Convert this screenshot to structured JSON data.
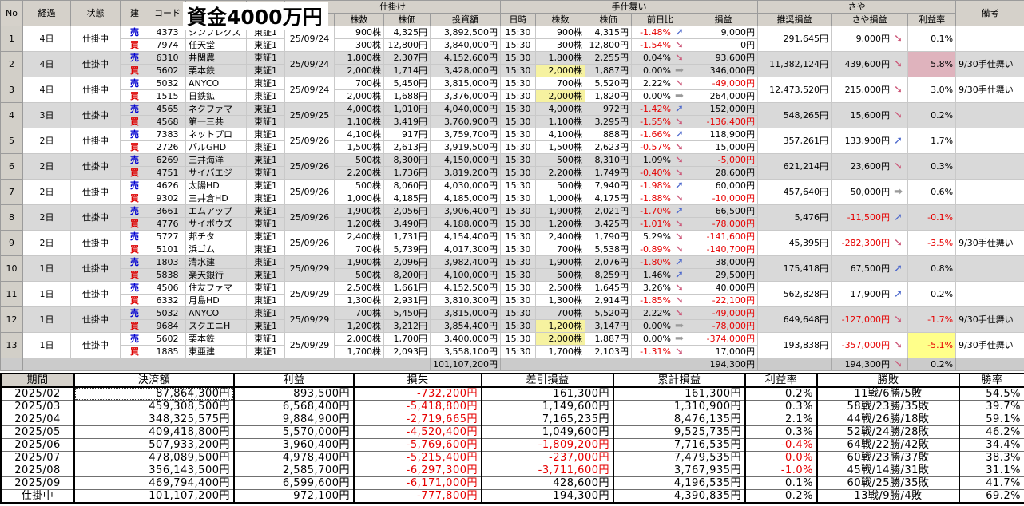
{
  "overlay": {
    "label": "資金4000万円"
  },
  "colors": {
    "sell_blue": "#0000d0",
    "buy_red": "#dd0000",
    "negative_red": "#e60000",
    "qty_highlight_yellow": "#f6f2a0",
    "rate_highlight_pink": "#dfb3bd",
    "rate_highlight_yellow": "#ffff8a",
    "arrow_up_blue": "#4a66cc",
    "arrow_down_pink": "#cc5577",
    "arrow_flat_gray": "#9a9a9a",
    "header_gray": "#d5d1ca",
    "alt_row_gray": "#d9d9d9"
  },
  "top_table": {
    "headers": {
      "no": "No",
      "elapsed": "経過",
      "status": "状態",
      "side": "建",
      "code": "コード",
      "name": "",
      "market": "",
      "entry_group": "仕掛け",
      "entry_date": "",
      "entry_qty": "株数",
      "entry_price": "株価",
      "entry_amount": "投資額",
      "close_group": "手仕舞い",
      "close_time": "日時",
      "close_qty": "株数",
      "close_price": "株価",
      "change": "前日比",
      "pl": "損益",
      "saya_group": "さや",
      "rec_pl": "推奨損益",
      "saya_pl": "さや損益",
      "rate": "利益率",
      "remark": "備考"
    },
    "rows": [
      {
        "no": "1",
        "elapsed": "4日",
        "status": "仕掛中",
        "date": "25/09/24",
        "sell": {
          "side": "売",
          "code": "4373",
          "name": "シンプレクス",
          "market": "東証1",
          "qty": "900株",
          "price": "4,325円",
          "amount": "3,892,500円",
          "time": "15:30",
          "c_qty": "900株",
          "c_qty_hl": false,
          "c_price": "4,315円",
          "change": "-1.48%",
          "change_arrow": "up",
          "pl": "9,000円"
        },
        "buy": {
          "side": "買",
          "code": "7974",
          "name": "任天堂",
          "market": "東証1",
          "qty": "300株",
          "price": "12,800円",
          "amount": "3,840,000円",
          "time": "15:30",
          "c_qty": "300株",
          "c_qty_hl": false,
          "c_price": "12,800円",
          "change": "-1.54%",
          "change_arrow": "down",
          "pl": "0円"
        },
        "rec_pl": "291,645円",
        "saya_pl": "9,000円",
        "saya_arrow": "down",
        "rate": "0.1%",
        "rate_hl": "",
        "remark": ""
      },
      {
        "no": "2",
        "elapsed": "4日",
        "status": "仕掛中",
        "date": "25/09/24",
        "sell": {
          "side": "売",
          "code": "6310",
          "name": "井関農",
          "market": "東証1",
          "qty": "1,800株",
          "price": "2,307円",
          "amount": "4,152,600円",
          "time": "15:30",
          "c_qty": "1,800株",
          "c_qty_hl": false,
          "c_price": "2,255円",
          "change": "0.04%",
          "change_arrow": "down",
          "pl": "93,600円"
        },
        "buy": {
          "side": "買",
          "code": "5602",
          "name": "栗本鉄",
          "market": "東証1",
          "qty": "2,000株",
          "price": "1,714円",
          "amount": "3,428,000円",
          "time": "15:30",
          "c_qty": "2,000株",
          "c_qty_hl": true,
          "c_price": "1,887円",
          "change": "0.00%",
          "change_arrow": "flat",
          "pl": "346,000円"
        },
        "rec_pl": "11,382,124円",
        "saya_pl": "439,600円",
        "saya_arrow": "down",
        "rate": "5.8%",
        "rate_hl": "pink",
        "remark": "9/30手仕舞い"
      },
      {
        "no": "3",
        "elapsed": "4日",
        "status": "仕掛中",
        "date": "25/09/24",
        "sell": {
          "side": "売",
          "code": "5032",
          "name": "ANYCO",
          "market": "東証1",
          "qty": "700株",
          "price": "5,450円",
          "amount": "3,815,000円",
          "time": "15:30",
          "c_qty": "700株",
          "c_qty_hl": false,
          "c_price": "5,520円",
          "change": "2.22%",
          "change_arrow": "down",
          "pl": "-49,000円"
        },
        "buy": {
          "side": "買",
          "code": "1515",
          "name": "日鉄鉱",
          "market": "東証1",
          "qty": "2,000株",
          "price": "1,688円",
          "amount": "3,376,000円",
          "time": "15:30",
          "c_qty": "2,000株",
          "c_qty_hl": true,
          "c_price": "1,820円",
          "change": "0.00%",
          "change_arrow": "flat",
          "pl": "264,000円"
        },
        "rec_pl": "12,473,520円",
        "saya_pl": "215,000円",
        "saya_arrow": "down",
        "rate": "3.0%",
        "rate_hl": "",
        "remark": "9/30手仕舞い"
      },
      {
        "no": "4",
        "elapsed": "3日",
        "status": "仕掛中",
        "date": "25/09/25",
        "sell": {
          "side": "売",
          "code": "4565",
          "name": "ネクファマ",
          "market": "東証1",
          "qty": "4,000株",
          "price": "1,010円",
          "amount": "4,040,000円",
          "time": "15:30",
          "c_qty": "4,000株",
          "c_qty_hl": false,
          "c_price": "972円",
          "change": "-1.42%",
          "change_arrow": "up",
          "pl": "152,000円"
        },
        "buy": {
          "side": "買",
          "code": "4568",
          "name": "第一三共",
          "market": "東証1",
          "qty": "1,100株",
          "price": "3,419円",
          "amount": "3,760,900円",
          "time": "15:30",
          "c_qty": "1,100株",
          "c_qty_hl": false,
          "c_price": "3,295円",
          "change": "-1.55%",
          "change_arrow": "down",
          "pl": "-136,400円"
        },
        "rec_pl": "548,265円",
        "saya_pl": "15,600円",
        "saya_arrow": "down",
        "rate": "0.2%",
        "rate_hl": "",
        "remark": ""
      },
      {
        "no": "5",
        "elapsed": "2日",
        "status": "仕掛中",
        "date": "25/09/26",
        "sell": {
          "side": "売",
          "code": "7383",
          "name": "ネットプロ",
          "market": "東証1",
          "qty": "4,100株",
          "price": "917円",
          "amount": "3,759,700円",
          "time": "15:30",
          "c_qty": "4,100株",
          "c_qty_hl": false,
          "c_price": "888円",
          "change": "-1.66%",
          "change_arrow": "up",
          "pl": "118,900円"
        },
        "buy": {
          "side": "買",
          "code": "2726",
          "name": "パルGHD",
          "market": "東証1",
          "qty": "1,500株",
          "price": "2,613円",
          "amount": "3,919,500円",
          "time": "15:30",
          "c_qty": "1,500株",
          "c_qty_hl": false,
          "c_price": "2,623円",
          "change": "-0.57%",
          "change_arrow": "down",
          "pl": "15,000円"
        },
        "rec_pl": "357,261円",
        "saya_pl": "133,900円",
        "saya_arrow": "up",
        "rate": "1.7%",
        "rate_hl": "",
        "remark": ""
      },
      {
        "no": "6",
        "elapsed": "2日",
        "status": "仕掛中",
        "date": "25/09/26",
        "sell": {
          "side": "売",
          "code": "6269",
          "name": "三井海洋",
          "market": "東証1",
          "qty": "500株",
          "price": "8,300円",
          "amount": "4,150,000円",
          "time": "15:30",
          "c_qty": "500株",
          "c_qty_hl": false,
          "c_price": "8,310円",
          "change": "1.09%",
          "change_arrow": "down",
          "pl": "-5,000円"
        },
        "buy": {
          "side": "買",
          "code": "4751",
          "name": "サイバエジ",
          "market": "東証1",
          "qty": "2,200株",
          "price": "1,736円",
          "amount": "3,819,200円",
          "time": "15:30",
          "c_qty": "2,200株",
          "c_qty_hl": false,
          "c_price": "1,749円",
          "change": "-0.40%",
          "change_arrow": "down",
          "pl": "28,600円"
        },
        "rec_pl": "621,214円",
        "saya_pl": "23,600円",
        "saya_arrow": "down",
        "rate": "0.3%",
        "rate_hl": "",
        "remark": ""
      },
      {
        "no": "7",
        "elapsed": "2日",
        "status": "仕掛中",
        "date": "25/09/26",
        "sell": {
          "side": "売",
          "code": "4626",
          "name": "太陽HD",
          "market": "東証1",
          "qty": "500株",
          "price": "8,060円",
          "amount": "4,030,000円",
          "time": "15:30",
          "c_qty": "500株",
          "c_qty_hl": false,
          "c_price": "7,940円",
          "change": "-1.98%",
          "change_arrow": "up",
          "pl": "60,000円"
        },
        "buy": {
          "side": "買",
          "code": "9302",
          "name": "三井倉HD",
          "market": "東証1",
          "qty": "1,000株",
          "price": "4,185円",
          "amount": "4,185,000円",
          "time": "15:30",
          "c_qty": "1,000株",
          "c_qty_hl": false,
          "c_price": "4,175円",
          "change": "-1.88%",
          "change_arrow": "down",
          "pl": "-10,000円"
        },
        "rec_pl": "457,640円",
        "saya_pl": "50,000円",
        "saya_arrow": "flat",
        "rate": "0.6%",
        "rate_hl": "",
        "remark": ""
      },
      {
        "no": "8",
        "elapsed": "2日",
        "status": "仕掛中",
        "date": "25/09/26",
        "sell": {
          "side": "売",
          "code": "3661",
          "name": "エムアップ",
          "market": "東証1",
          "qty": "1,900株",
          "price": "2,056円",
          "amount": "3,906,400円",
          "time": "15:30",
          "c_qty": "1,900株",
          "c_qty_hl": false,
          "c_price": "2,021円",
          "change": "-1.70%",
          "change_arrow": "up",
          "pl": "66,500円"
        },
        "buy": {
          "side": "買",
          "code": "4776",
          "name": "サイボウズ",
          "market": "東証1",
          "qty": "1,200株",
          "price": "3,490円",
          "amount": "4,188,000円",
          "time": "15:30",
          "c_qty": "1,200株",
          "c_qty_hl": false,
          "c_price": "3,425円",
          "change": "-1.01%",
          "change_arrow": "down",
          "pl": "-78,000円"
        },
        "rec_pl": "5,476円",
        "saya_pl": "-11,500円",
        "saya_arrow": "up",
        "rate": "-0.1%",
        "rate_hl": "",
        "remark": ""
      },
      {
        "no": "9",
        "elapsed": "2日",
        "status": "仕掛中",
        "date": "25/09/26",
        "sell": {
          "side": "売",
          "code": "5727",
          "name": "邦チタ",
          "market": "東証1",
          "qty": "2,400株",
          "price": "1,731円",
          "amount": "4,154,400円",
          "time": "15:30",
          "c_qty": "2,400株",
          "c_qty_hl": false,
          "c_price": "1,790円",
          "change": "5.29%",
          "change_arrow": "down",
          "pl": "-141,600円"
        },
        "buy": {
          "side": "買",
          "code": "5101",
          "name": "浜ゴム",
          "market": "東証1",
          "qty": "700株",
          "price": "5,739円",
          "amount": "4,017,300円",
          "time": "15:30",
          "c_qty": "700株",
          "c_qty_hl": false,
          "c_price": "5,538円",
          "change": "-0.89%",
          "change_arrow": "down",
          "pl": "-140,700円"
        },
        "rec_pl": "45,395円",
        "saya_pl": "-282,300円",
        "saya_arrow": "down",
        "rate": "-3.5%",
        "rate_hl": "",
        "remark": "9/30手仕舞い"
      },
      {
        "no": "10",
        "elapsed": "1日",
        "status": "仕掛中",
        "date": "25/09/29",
        "sell": {
          "side": "売",
          "code": "1803",
          "name": "清水建",
          "market": "東証1",
          "qty": "1,900株",
          "price": "2,096円",
          "amount": "3,982,400円",
          "time": "15:30",
          "c_qty": "1,900株",
          "c_qty_hl": false,
          "c_price": "2,076円",
          "change": "-1.80%",
          "change_arrow": "up",
          "pl": "38,000円"
        },
        "buy": {
          "side": "買",
          "code": "5838",
          "name": "楽天銀行",
          "market": "東証1",
          "qty": "500株",
          "price": "8,200円",
          "amount": "4,100,000円",
          "time": "15:30",
          "c_qty": "500株",
          "c_qty_hl": false,
          "c_price": "8,259円",
          "change": "1.46%",
          "change_arrow": "up",
          "pl": "29,500円"
        },
        "rec_pl": "175,418円",
        "saya_pl": "67,500円",
        "saya_arrow": "up",
        "rate": "0.8%",
        "rate_hl": "",
        "remark": ""
      },
      {
        "no": "11",
        "elapsed": "1日",
        "status": "仕掛中",
        "date": "25/09/29",
        "sell": {
          "side": "売",
          "code": "4506",
          "name": "住友ファマ",
          "market": "東証1",
          "qty": "2,500株",
          "price": "1,661円",
          "amount": "4,152,500円",
          "time": "15:30",
          "c_qty": "2,500株",
          "c_qty_hl": false,
          "c_price": "1,645円",
          "change": "3.26%",
          "change_arrow": "down",
          "pl": "40,000円"
        },
        "buy": {
          "side": "買",
          "code": "6332",
          "name": "月島HD",
          "market": "東証1",
          "qty": "1,300株",
          "price": "2,931円",
          "amount": "3,810,300円",
          "time": "15:30",
          "c_qty": "1,300株",
          "c_qty_hl": false,
          "c_price": "2,914円",
          "change": "-1.85%",
          "change_arrow": "down",
          "pl": "-22,100円"
        },
        "rec_pl": "562,828円",
        "saya_pl": "17,900円",
        "saya_arrow": "up",
        "rate": "0.2%",
        "rate_hl": "",
        "remark": ""
      },
      {
        "no": "12",
        "elapsed": "1日",
        "status": "仕掛中",
        "date": "25/09/29",
        "sell": {
          "side": "売",
          "code": "5032",
          "name": "ANYCO",
          "market": "東証1",
          "qty": "700株",
          "price": "5,450円",
          "amount": "3,815,000円",
          "time": "15:30",
          "c_qty": "700株",
          "c_qty_hl": false,
          "c_price": "5,520円",
          "change": "2.22%",
          "change_arrow": "down",
          "pl": "-49,000円"
        },
        "buy": {
          "side": "買",
          "code": "9684",
          "name": "スクエニH",
          "market": "東証1",
          "qty": "1,200株",
          "price": "3,212円",
          "amount": "3,854,400円",
          "time": "15:30",
          "c_qty": "1,200株",
          "c_qty_hl": true,
          "c_price": "3,147円",
          "change": "0.00%",
          "change_arrow": "flat",
          "pl": "-78,000円"
        },
        "rec_pl": "649,648円",
        "saya_pl": "-127,000円",
        "saya_arrow": "down",
        "rate": "-1.7%",
        "rate_hl": "",
        "remark": "9/30手仕舞い"
      },
      {
        "no": "13",
        "elapsed": "1日",
        "status": "仕掛中",
        "date": "25/09/29",
        "sell": {
          "side": "売",
          "code": "5602",
          "name": "栗本鉄",
          "market": "東証1",
          "qty": "2,000株",
          "price": "1,700円",
          "amount": "3,400,000円",
          "time": "15:30",
          "c_qty": "2,000株",
          "c_qty_hl": true,
          "c_price": "1,887円",
          "change": "0.00%",
          "change_arrow": "flat",
          "pl": "-374,000円"
        },
        "buy": {
          "side": "買",
          "code": "1885",
          "name": "東亜建",
          "market": "東証1",
          "qty": "1,700株",
          "price": "2,093円",
          "amount": "3,558,100円",
          "time": "15:30",
          "c_qty": "1,700株",
          "c_qty_hl": false,
          "c_price": "2,103円",
          "change": "-1.31%",
          "change_arrow": "down",
          "pl": "17,000円"
        },
        "rec_pl": "193,838円",
        "saya_pl": "-357,000円",
        "saya_arrow": "down",
        "rate": "-5.1%",
        "rate_hl": "yellow",
        "remark": "9/30手仕舞い"
      }
    ],
    "total": {
      "amount": "101,107,200円",
      "pl": "194,300円",
      "saya_pl": "194,300円",
      "saya_arrow": "down",
      "rate": "0.2%"
    }
  },
  "bottom_table": {
    "headers": [
      "期間",
      "決済額",
      "利益",
      "損失",
      "差引損益",
      "累計損益",
      "利益率",
      "勝敗",
      "勝率"
    ],
    "rows": [
      {
        "cells": [
          "2025/02",
          "87,864,300円",
          "893,500円",
          "-732,200円",
          "161,300円",
          "161,300円",
          "0.2%",
          "11戦/6勝/5敗",
          "54.5%"
        ],
        "extra_red": [],
        "selected": 1
      },
      {
        "cells": [
          "2025/03",
          "459,308,500円",
          "6,568,400円",
          "-5,418,800円",
          "1,149,600円",
          "1,310,900円",
          "0.3%",
          "58戦/23勝/35敗",
          "39.7%"
        ],
        "extra_red": [],
        "selected": null
      },
      {
        "cells": [
          "2025/04",
          "348,325,575円",
          "9,884,900円",
          "-2,719,665円",
          "7,165,235円",
          "8,476,135円",
          "2.1%",
          "44戦/26勝/18敗",
          "59.1%"
        ],
        "extra_red": [],
        "selected": null
      },
      {
        "cells": [
          "2025/05",
          "409,418,800円",
          "5,570,000円",
          "-4,520,400円",
          "1,049,600円",
          "9,525,735円",
          "0.3%",
          "52戦/24勝/28敗",
          "46.2%"
        ],
        "extra_red": [],
        "selected": null
      },
      {
        "cells": [
          "2025/06",
          "507,933,200円",
          "3,960,400円",
          "-5,769,600円",
          "-1,809,200円",
          "7,716,535円",
          "-0.4%",
          "64戦/22勝/42敗",
          "34.4%"
        ],
        "extra_red": [],
        "selected": null
      },
      {
        "cells": [
          "2025/07",
          "478,089,500円",
          "4,978,400円",
          "-5,215,400円",
          "-237,000円",
          "7,479,535円",
          "0.0%",
          "60戦/23勝/37敗",
          "38.3%"
        ],
        "extra_red": [
          6
        ],
        "selected": null
      },
      {
        "cells": [
          "2025/08",
          "356,143,500円",
          "2,585,700円",
          "-6,297,300円",
          "-3,711,600円",
          "3,767,935円",
          "-1.0%",
          "45戦/14勝/31敗",
          "31.1%"
        ],
        "extra_red": [],
        "selected": null
      },
      {
        "cells": [
          "2025/09",
          "469,794,400円",
          "6,599,600円",
          "-6,171,000円",
          "428,600円",
          "4,196,535円",
          "0.1%",
          "60戦/25勝/35敗",
          "41.7%"
        ],
        "extra_red": [],
        "selected": null
      },
      {
        "cells": [
          "仕掛中",
          "101,107,200円",
          "972,100円",
          "-777,800円",
          "194,300円",
          "4,390,835円",
          "0.2%",
          "13戦/9勝/4敗",
          "69.2%"
        ],
        "extra_red": [],
        "selected": null
      }
    ]
  }
}
